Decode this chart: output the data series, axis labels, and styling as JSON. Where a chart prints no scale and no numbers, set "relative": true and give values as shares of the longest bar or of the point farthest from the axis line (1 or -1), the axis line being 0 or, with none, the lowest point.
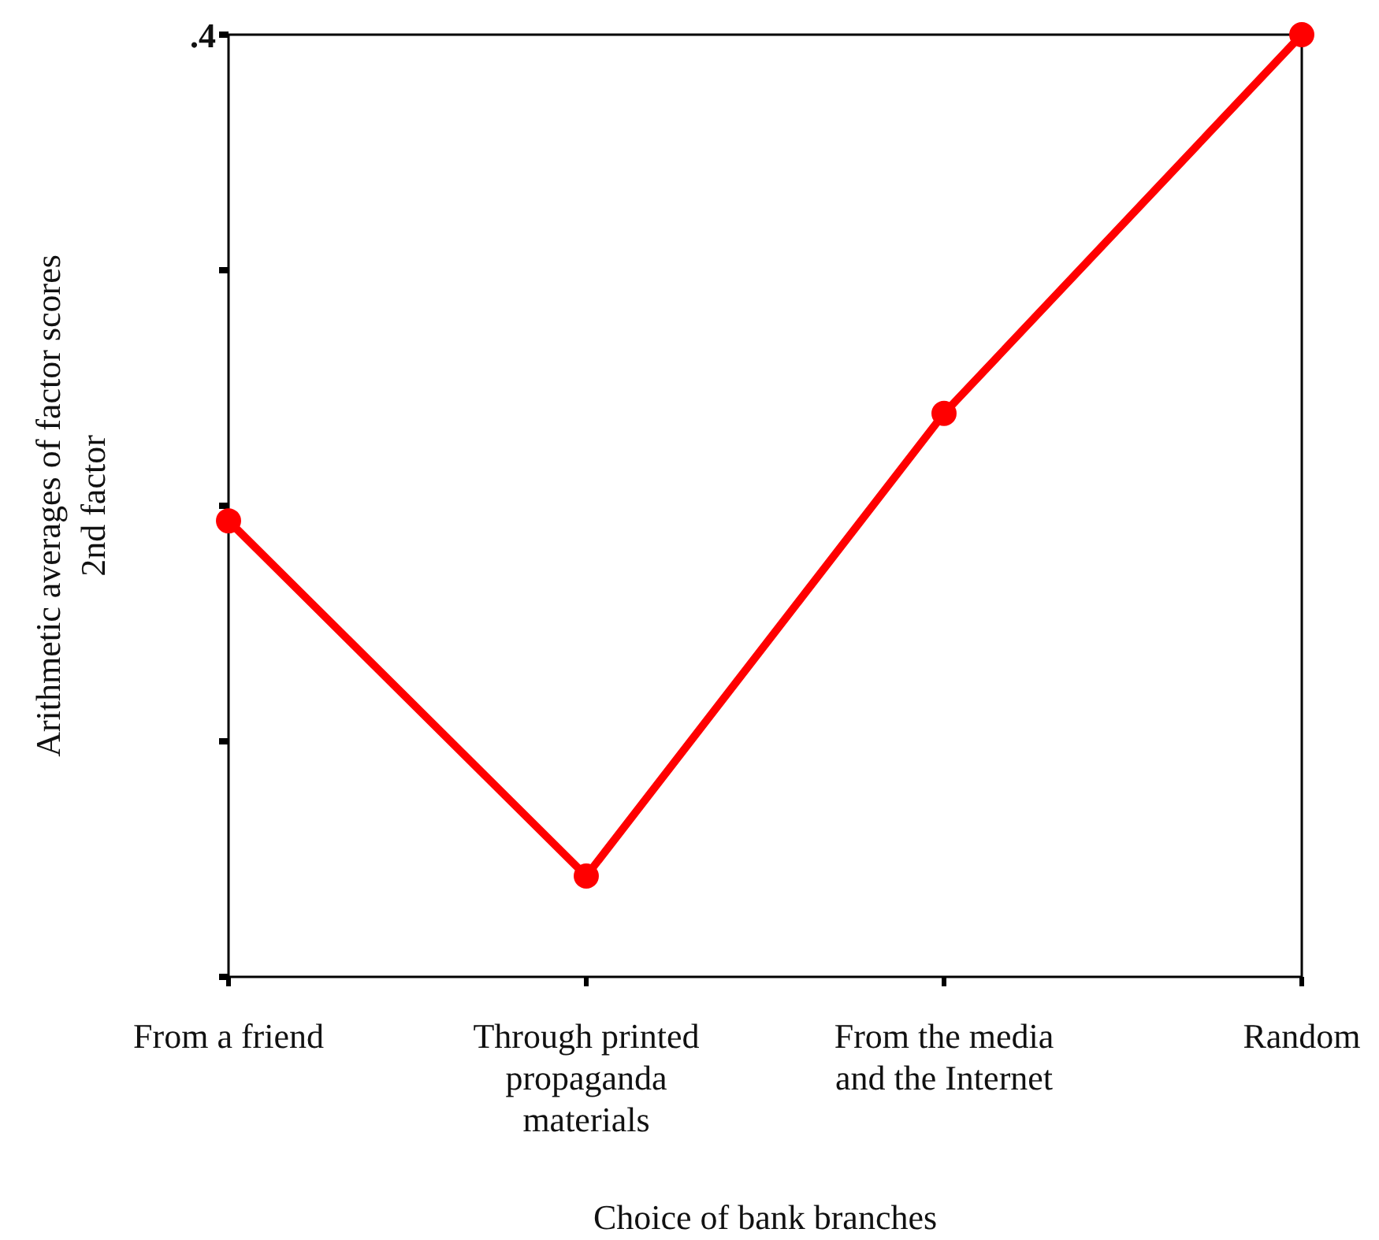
{
  "chart_data": {
    "type": "line",
    "relative": true,
    "xlabel": "Choice of bank branches",
    "ylabel": "Arithmetic averages of factor scores\n2nd factor",
    "categories": [
      "From a friend",
      "Through printed propaganda materials",
      "From the media and the Internet",
      "Random"
    ],
    "series": [
      {
        "color": "#ff0000",
        "values": [
          0.484,
          0.107,
          0.598,
          1
        ]
      }
    ],
    "annotations": [
      ".4"
    ],
    "marker": "circle",
    "line_style": "solid"
  }
}
